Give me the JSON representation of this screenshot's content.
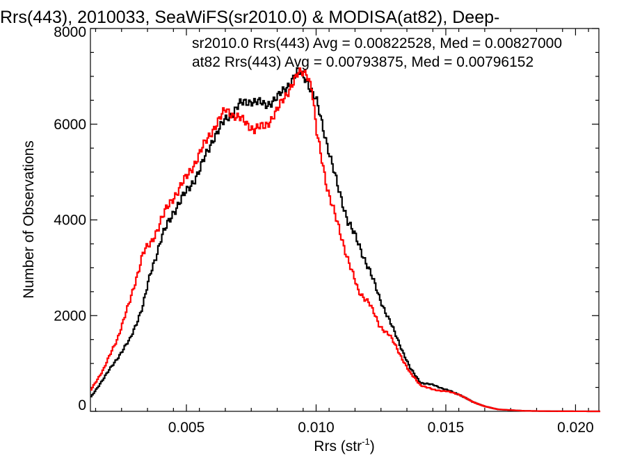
{
  "chart_data": {
    "type": "line",
    "title": "Rrs(443), 2010033, SeaWiFS(sr2010.0) & MODISA(at82), Deep-",
    "xlabel_main": "Rrs (str",
    "xlabel_sup": "-1",
    "xlabel_end": ")",
    "ylabel": "Number of Observations",
    "xlim": [
      0.0013,
      0.0209
    ],
    "ylim": [
      0,
      8000
    ],
    "xticks": [
      0.005,
      0.01,
      0.015,
      0.02
    ],
    "xtick_labels": [
      "0.005",
      "0.010",
      "0.015",
      "0.020"
    ],
    "yticks": [
      0,
      2000,
      4000,
      6000,
      8000
    ],
    "ytick_labels": [
      "0",
      "2000",
      "4000",
      "6000",
      "8000"
    ],
    "grid": false,
    "legend_position": "top-right",
    "series": [
      {
        "name": "sr2010.0 Rrs(443) Avg = 0.00822528, Med = 0.00827000",
        "color": "#000000",
        "x": [
          0.0013,
          0.0018,
          0.0023,
          0.0028,
          0.0033,
          0.0036,
          0.004,
          0.0045,
          0.005,
          0.0055,
          0.006,
          0.0065,
          0.007,
          0.0075,
          0.008,
          0.0085,
          0.009,
          0.0093,
          0.0096,
          0.01,
          0.0104,
          0.0108,
          0.0112,
          0.0116,
          0.012,
          0.0124,
          0.0128,
          0.0132,
          0.0136,
          0.014,
          0.0145,
          0.015,
          0.0155,
          0.016,
          0.0165,
          0.017,
          0.018,
          0.019,
          0.02,
          0.0209
        ],
        "y": [
          300,
          700,
          1100,
          1500,
          2200,
          2900,
          3600,
          4200,
          4600,
          5050,
          5700,
          6100,
          6400,
          6500,
          6400,
          6550,
          6900,
          7100,
          6950,
          6450,
          5600,
          4700,
          4000,
          3500,
          3000,
          2400,
          1900,
          1400,
          900,
          600,
          550,
          450,
          350,
          200,
          100,
          40,
          10,
          3,
          1,
          0
        ]
      },
      {
        "name": "at82 Rrs(443) Avg = 0.00793875, Med = 0.00796152",
        "color": "#ff0000",
        "x": [
          0.0013,
          0.0018,
          0.0023,
          0.0028,
          0.0033,
          0.0036,
          0.004,
          0.0045,
          0.005,
          0.0055,
          0.006,
          0.0065,
          0.0068,
          0.0072,
          0.0076,
          0.008,
          0.0085,
          0.009,
          0.0093,
          0.0096,
          0.0098,
          0.01,
          0.0104,
          0.0108,
          0.0112,
          0.0116,
          0.012,
          0.0124,
          0.0128,
          0.0132,
          0.0136,
          0.014,
          0.0145,
          0.015,
          0.0155,
          0.016,
          0.0165,
          0.017,
          0.018,
          0.019,
          0.02,
          0.0209
        ],
        "y": [
          450,
          900,
          1500,
          2300,
          3300,
          3500,
          4000,
          4500,
          4900,
          5400,
          5900,
          6300,
          6200,
          6050,
          5900,
          5950,
          6300,
          6800,
          7050,
          7100,
          6800,
          5800,
          4700,
          3900,
          3200,
          2500,
          2300,
          1800,
          1600,
          1200,
          800,
          550,
          450,
          420,
          350,
          200,
          100,
          40,
          10,
          3,
          1,
          0
        ]
      }
    ]
  }
}
